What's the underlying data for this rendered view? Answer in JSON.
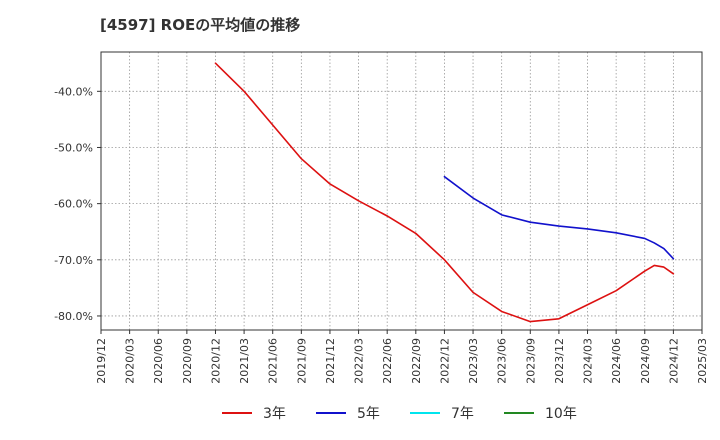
{
  "chart_data": {
    "type": "line",
    "title": "[4597]  ROEの平均値の推移",
    "xlabel": "",
    "ylabel": "",
    "x_ticks": [
      "2019/12",
      "2020/03",
      "2020/06",
      "2020/09",
      "2020/12",
      "2021/03",
      "2021/06",
      "2021/09",
      "2021/12",
      "2022/03",
      "2022/06",
      "2022/09",
      "2022/12",
      "2023/03",
      "2023/06",
      "2023/09",
      "2023/12",
      "2024/03",
      "2024/06",
      "2024/09",
      "2024/12",
      "2025/03"
    ],
    "y_ticks": [
      {
        "value": -40,
        "label": "-40.0%"
      },
      {
        "value": -50,
        "label": "-50.0%"
      },
      {
        "value": -60,
        "label": "-60.0%"
      },
      {
        "value": -70,
        "label": "-70.0%"
      },
      {
        "value": -80,
        "label": "-80.0%"
      }
    ],
    "ylim": [
      -82.5,
      -33
    ],
    "xlim": [
      "2019/12",
      "2025/03"
    ],
    "grid": true,
    "legend_position": "bottom",
    "series": [
      {
        "name": "3年",
        "color": "#dd1111",
        "points": [
          [
            "2020/12",
            -35.0
          ],
          [
            "2021/03",
            -40.0
          ],
          [
            "2021/06",
            -46.0
          ],
          [
            "2021/09",
            -52.0
          ],
          [
            "2021/12",
            -56.5
          ],
          [
            "2022/03",
            -59.5
          ],
          [
            "2022/06",
            -62.2
          ],
          [
            "2022/09",
            -65.3
          ],
          [
            "2022/12",
            -70.0
          ],
          [
            "2023/03",
            -75.8
          ],
          [
            "2023/06",
            -79.2
          ],
          [
            "2023/09",
            -81.0
          ],
          [
            "2023/12",
            -80.5
          ],
          [
            "2024/03",
            -78.0
          ],
          [
            "2024/06",
            -75.5
          ],
          [
            "2024/09",
            -72.0
          ],
          [
            "2024/10",
            -71.0
          ],
          [
            "2024/11",
            -71.3
          ],
          [
            "2024/12",
            -72.5
          ]
        ]
      },
      {
        "name": "5年",
        "color": "#1111cc",
        "points": [
          [
            "2022/12",
            -55.2
          ],
          [
            "2023/03",
            -59.0
          ],
          [
            "2023/06",
            -62.0
          ],
          [
            "2023/09",
            -63.3
          ],
          [
            "2023/12",
            -64.0
          ],
          [
            "2024/03",
            -64.5
          ],
          [
            "2024/06",
            -65.2
          ],
          [
            "2024/09",
            -66.2
          ],
          [
            "2024/10",
            -67.0
          ],
          [
            "2024/11",
            -68.0
          ],
          [
            "2024/12",
            -69.8
          ]
        ]
      },
      {
        "name": "7年",
        "color": "#00e5ee",
        "points": []
      },
      {
        "name": "10年",
        "color": "#228822",
        "points": []
      }
    ]
  }
}
